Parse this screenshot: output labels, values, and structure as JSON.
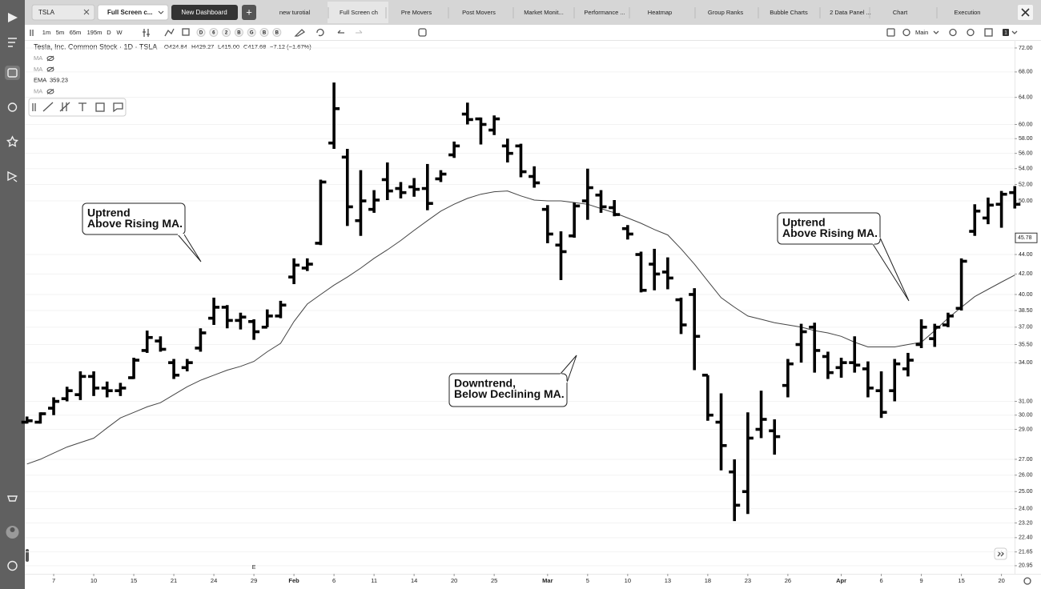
{
  "tabs": {
    "symbol": "TSLA",
    "layout_tab": "Full Screen c...",
    "new_dashboard": "New Dashboard",
    "plus": "+",
    "items": [
      "new turotial",
      "Full Screen ch",
      "Pre Movers",
      "Post Movers",
      "Market Monit...",
      "Performance ...",
      "Heatmap",
      "Group Ranks",
      "Bubble Charts",
      "2 Data Panel ...",
      "Chart",
      "Execution"
    ]
  },
  "toolbar": {
    "intervals": [
      "1m",
      "5m",
      "65m",
      "195m",
      "D",
      "W"
    ],
    "badges": [
      "D",
      "6",
      "2",
      "B",
      "G",
      "B",
      "B"
    ],
    "layout": "Main",
    "count": "1"
  },
  "legend": {
    "title": "Tesla, Inc. Common Stock · 1D · TSLA",
    "open": "O424.84",
    "high": "H429.27",
    "low": "L415.00",
    "close": "C417.68",
    "change": "−7.12 (−1.67%)",
    "studies": [
      {
        "name": "MA"
      },
      {
        "name": "MA"
      },
      {
        "name": "EMA",
        "value": "359.23"
      },
      {
        "name": "MA"
      }
    ]
  },
  "chart_data": {
    "type": "ohlc",
    "log_scale": true,
    "grid": true,
    "color": "#000000",
    "categories": [
      null,
      null,
      "7",
      null,
      null,
      "10",
      null,
      null,
      "15",
      null,
      null,
      "21",
      null,
      null,
      "24",
      null,
      null,
      "29",
      null,
      null,
      "Feb",
      null,
      null,
      "6",
      null,
      null,
      "11",
      null,
      null,
      "14",
      null,
      null,
      "20",
      null,
      null,
      "25",
      null,
      null,
      null,
      "Mar",
      null,
      null,
      "5",
      null,
      null,
      "10",
      null,
      null,
      "13",
      null,
      null,
      "18",
      null,
      null,
      "23",
      null,
      null,
      "26",
      null,
      null,
      null,
      "Apr",
      null,
      null,
      "6",
      null,
      null,
      "9",
      null,
      null,
      "15",
      null,
      null,
      "20",
      null
    ],
    "open": [
      29.5,
      29.5,
      30.5,
      31.2,
      31.5,
      32.9,
      32.0,
      31.8,
      32.8,
      35.0,
      35.8,
      34.0,
      33.6,
      35.2,
      37.8,
      38.8,
      37.6,
      37.5,
      37.0,
      38.0,
      41.7,
      42.6,
      45.2,
      57.4,
      55.5,
      47.7,
      49.0,
      52.6,
      51.5,
      51.7,
      51.5,
      52.7,
      55.8,
      61.5,
      60.8,
      59.2,
      57.0,
      57.0,
      53.0,
      49.0,
      45.0,
      46.0,
      50.0,
      50.7,
      49.2,
      46.8,
      44.0,
      43.0,
      42.2,
      39.5,
      40.0,
      33.0,
      29.5,
      26.2,
      25.0,
      29.0,
      28.9,
      32.2,
      35.5,
      37.0,
      34.5,
      33.6,
      34.0,
      33.5,
      31.8,
      31.8,
      33.5,
      35.5,
      36.0,
      37.2,
      38.7,
      46.5,
      48.0,
      49.6,
      51.0
    ],
    "high": [
      29.9,
      30.2,
      31.3,
      32.1,
      33.3,
      33.3,
      32.5,
      32.4,
      34.4,
      36.7,
      36.2,
      34.3,
      34.3,
      36.9,
      39.7,
      39.0,
      38.3,
      37.7,
      38.6,
      39.4,
      43.6,
      43.6,
      52.6,
      66.3,
      56.6,
      53.8,
      51.3,
      54.8,
      52.3,
      52.8,
      54.6,
      53.8,
      57.6,
      63.2,
      61.0,
      61.3,
      58.0,
      57.3,
      54.3,
      49.5,
      46.5,
      49.8,
      54.0,
      51.3,
      50.1,
      47.2,
      44.3,
      44.6,
      43.7,
      39.7,
      40.6,
      33.0,
      31.6,
      27.0,
      30.2,
      31.8,
      29.7,
      34.3,
      37.3,
      37.4,
      34.9,
      34.4,
      36.2,
      34.1,
      33.3,
      34.3,
      34.8,
      37.7,
      37.3,
      38.3,
      43.6,
      49.6,
      50.4,
      51.2,
      51.8
    ],
    "low": [
      29.4,
      29.4,
      30.0,
      31.0,
      31.1,
      31.4,
      31.3,
      31.4,
      32.7,
      34.8,
      34.9,
      32.7,
      33.3,
      34.9,
      37.2,
      36.9,
      36.8,
      35.9,
      37.0,
      37.8,
      41.0,
      42.3,
      45.0,
      56.6,
      47.1,
      46.0,
      48.6,
      50.1,
      50.3,
      50.5,
      48.9,
      52.3,
      55.4,
      60.0,
      57.2,
      58.5,
      54.8,
      52.9,
      51.6,
      45.2,
      41.4,
      45.8,
      47.8,
      48.6,
      48.2,
      45.6,
      40.2,
      40.4,
      40.5,
      36.4,
      33.4,
      29.6,
      26.3,
      23.3,
      23.7,
      28.4,
      27.3,
      31.3,
      34.0,
      33.2,
      32.7,
      32.8,
      33.2,
      31.3,
      29.8,
      31.0,
      32.9,
      35.2,
      35.3,
      37.0,
      38.5,
      46.0,
      47.3,
      46.9,
      49.1
    ],
    "close": [
      29.6,
      30.1,
      31.0,
      31.8,
      32.9,
      32.0,
      31.8,
      32.0,
      34.2,
      36.1,
      35.1,
      33.0,
      34.0,
      36.5,
      38.8,
      37.6,
      37.9,
      36.6,
      38.0,
      39.0,
      42.9,
      43.0,
      52.3,
      62.3,
      49.3,
      50.0,
      50.1,
      51.2,
      51.0,
      51.4,
      49.7,
      53.3,
      57.0,
      60.7,
      60.0,
      60.8,
      56.0,
      53.6,
      52.2,
      46.2,
      44.3,
      49.4,
      51.6,
      49.3,
      48.4,
      46.2,
      40.4,
      42.0,
      41.6,
      37.2,
      36.2,
      30.0,
      27.9,
      24.2,
      28.4,
      29.7,
      28.5,
      33.9,
      36.6,
      35.0,
      33.2,
      34.0,
      33.8,
      32.0,
      30.2,
      33.9,
      34.2,
      37.0,
      37.0,
      38.0,
      43.3,
      48.8,
      49.5,
      50.8,
      49.6
    ],
    "ma": {
      "color": "#444444",
      "values": [
        26.7,
        27.0,
        27.4,
        27.8,
        28.1,
        28.4,
        29.1,
        29.8,
        30.2,
        30.6,
        30.9,
        31.5,
        32.1,
        32.6,
        33.0,
        33.4,
        33.7,
        34.1,
        34.9,
        35.6,
        37.5,
        39.1,
        40.0,
        40.9,
        41.7,
        42.6,
        43.6,
        44.5,
        45.5,
        46.6,
        47.7,
        48.8,
        49.6,
        50.3,
        50.8,
        51.1,
        51.2,
        50.6,
        50.1,
        50.0,
        50.0,
        49.8,
        49.6,
        49.1,
        48.6,
        48.0,
        47.4,
        46.7,
        46.1,
        44.6,
        43.0,
        41.3,
        39.7,
        38.8,
        38.0,
        37.7,
        37.4,
        37.2,
        37.0,
        36.7,
        36.5,
        36.2,
        35.7,
        35.3,
        35.3,
        35.3,
        35.5,
        35.7,
        36.7,
        37.8,
        38.8,
        39.8,
        40.5,
        41.2,
        41.9
      ]
    },
    "ylim": [
      20.55,
      73.1
    ],
    "yticks": [
      {
        "value": 72,
        "label": "72.00"
      },
      {
        "value": 68,
        "label": "68.00"
      },
      {
        "value": 64,
        "label": "64.00"
      },
      {
        "value": 60,
        "label": "60.00"
      },
      {
        "value": 58,
        "label": "58.00"
      },
      {
        "value": 56,
        "label": "56.00"
      },
      {
        "value": 54,
        "label": "54.00"
      },
      {
        "value": 52,
        "label": "52.00"
      },
      {
        "value": 50,
        "label": "50.00"
      },
      {
        "value": 44,
        "label": "44.00"
      },
      {
        "value": 42,
        "label": "42.00"
      },
      {
        "value": 40,
        "label": "40.00"
      },
      {
        "value": 38.5,
        "label": "38.50"
      },
      {
        "value": 37,
        "label": "37.00"
      },
      {
        "value": 35.5,
        "label": "35.50"
      },
      {
        "value": 34,
        "label": "34.00"
      },
      {
        "value": 31,
        "label": "31.00"
      },
      {
        "value": 30,
        "label": "30.00"
      },
      {
        "value": 29,
        "label": "29.00"
      },
      {
        "value": 27,
        "label": "27.00"
      },
      {
        "value": 26,
        "label": "26.00"
      },
      {
        "value": 25,
        "label": "25.00"
      },
      {
        "value": 24,
        "label": "24.00"
      },
      {
        "value": 23.2,
        "label": "23.20"
      },
      {
        "value": 22.4,
        "label": "22.40"
      },
      {
        "value": 21.65,
        "label": "21.65"
      },
      {
        "value": 20.95,
        "label": "20.95"
      }
    ],
    "last_price": 45.78,
    "annotations": [
      {
        "lines": [
          "Uptrend",
          "Above Rising MA."
        ]
      },
      {
        "lines": [
          "Downtrend,",
          "Below Declining MA."
        ]
      },
      {
        "lines": [
          "Uptrend",
          "Above Rising MA."
        ]
      }
    ],
    "event_marker": "E"
  }
}
